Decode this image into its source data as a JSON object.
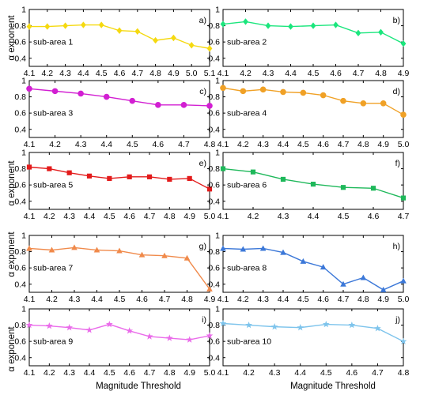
{
  "figure": {
    "ylabel": "α exponent",
    "xlabel": "Magnitude Threshold"
  },
  "chart_data": [
    {
      "type": "line",
      "panel": "a)",
      "label": "sub-area 1",
      "color": "#f5d90f",
      "marker": "diamond",
      "x": [
        4.1,
        4.2,
        4.3,
        4.4,
        4.5,
        4.6,
        4.7,
        4.8,
        4.9,
        5.0,
        5.1
      ],
      "y": [
        0.79,
        0.79,
        0.8,
        0.81,
        0.81,
        0.74,
        0.73,
        0.62,
        0.65,
        0.56,
        0.52
      ],
      "xticks": [
        "4.1",
        "4.2",
        "4.3",
        "4.4",
        "4.5",
        "4.6",
        "4.7",
        "4.8",
        "4.9",
        "5.0",
        "5.1"
      ],
      "xlim": [
        4.1,
        5.1
      ],
      "ylim": [
        0.3,
        1.0
      ],
      "yticks": [
        "0.4",
        "0.6",
        "0.8",
        "1"
      ]
    },
    {
      "type": "line",
      "panel": "b)",
      "label": "sub-area 2",
      "color": "#1be67d",
      "marker": "diamond",
      "x": [
        4.1,
        4.2,
        4.3,
        4.4,
        4.5,
        4.6,
        4.7,
        4.8,
        4.9
      ],
      "y": [
        0.82,
        0.85,
        0.8,
        0.79,
        0.8,
        0.81,
        0.71,
        0.72,
        0.58
      ],
      "xticks": [
        "4.1",
        "4.2",
        "4.3",
        "4.4",
        "4.5",
        "4.6",
        "4.7",
        "4.8",
        "4.9"
      ],
      "xlim": [
        4.1,
        4.9
      ],
      "ylim": [
        0.3,
        1.0
      ],
      "yticks": [
        "0.4",
        "0.6",
        "0.8",
        "1"
      ]
    },
    {
      "type": "line",
      "panel": "c)",
      "label": "sub-area 3",
      "color": "#d21fd2",
      "marker": "circle",
      "x": [
        4.1,
        4.2,
        4.3,
        4.4,
        4.5,
        4.6,
        4.7,
        4.8
      ],
      "y": [
        0.9,
        0.87,
        0.84,
        0.8,
        0.75,
        0.7,
        0.7,
        0.69
      ],
      "xticks": [
        "4.1",
        "4.2",
        "4.3",
        "4.4",
        "4.5",
        "4.6",
        "4.7",
        "4.8"
      ],
      "xlim": [
        4.1,
        4.8
      ],
      "ylim": [
        0.3,
        1.0
      ],
      "yticks": [
        "0.4",
        "0.6",
        "0.8",
        "1"
      ]
    },
    {
      "type": "line",
      "panel": "d)",
      "label": "sub-area 4",
      "color": "#f0a126",
      "marker": "circle",
      "x": [
        4.1,
        4.2,
        4.3,
        4.4,
        4.5,
        4.6,
        4.7,
        4.8,
        4.9,
        5.0
      ],
      "y": [
        0.91,
        0.87,
        0.89,
        0.86,
        0.85,
        0.82,
        0.75,
        0.72,
        0.72,
        0.58
      ],
      "xticks": [
        "4.1",
        "4.2",
        "4.3",
        "4.4",
        "4.5",
        "4.6",
        "4.7",
        "4.8",
        "4.9",
        "5.0"
      ],
      "xlim": [
        4.1,
        5.0
      ],
      "ylim": [
        0.3,
        1.0
      ],
      "yticks": [
        "0.4",
        "0.6",
        "0.8",
        "1"
      ]
    },
    {
      "type": "line",
      "panel": "e)",
      "label": "sub-area 5",
      "color": "#e31b1b",
      "marker": "square",
      "x": [
        4.1,
        4.2,
        4.3,
        4.4,
        4.5,
        4.6,
        4.7,
        4.8,
        4.9,
        5.0
      ],
      "y": [
        0.82,
        0.8,
        0.75,
        0.71,
        0.68,
        0.7,
        0.7,
        0.67,
        0.68,
        0.55
      ],
      "xticks": [
        "4.1",
        "4.2",
        "4.3",
        "4.4",
        "4.5",
        "4.6",
        "4.7",
        "4.8",
        "4.9",
        "5.0"
      ],
      "xlim": [
        4.1,
        5.0
      ],
      "ylim": [
        0.3,
        1.0
      ],
      "yticks": [
        "0.4",
        "0.6",
        "0.8",
        "1"
      ]
    },
    {
      "type": "line",
      "panel": "f)",
      "label": "sub-area 6",
      "color": "#1eb85a",
      "marker": "square",
      "x": [
        4.1,
        4.2,
        4.3,
        4.4,
        4.5,
        4.6,
        4.7
      ],
      "y": [
        0.8,
        0.76,
        0.67,
        0.61,
        0.57,
        0.56,
        0.44
      ],
      "xticks": [
        "4.1",
        "4.2",
        "4.3",
        "4.4",
        "4.5",
        "4.6",
        "4.7"
      ],
      "xlim": [
        4.1,
        4.7
      ],
      "ylim": [
        0.3,
        1.0
      ],
      "yticks": [
        "0.4",
        "0.6",
        "0.8",
        "1"
      ]
    },
    {
      "type": "line",
      "panel": "g)",
      "label": "sub-area 7",
      "color": "#f08a4b",
      "marker": "triangle",
      "x": [
        4.1,
        4.2,
        4.3,
        4.4,
        4.5,
        4.6,
        4.7,
        4.8,
        4.9
      ],
      "y": [
        0.84,
        0.82,
        0.85,
        0.82,
        0.81,
        0.76,
        0.75,
        0.72,
        0.34
      ],
      "xticks": [
        "4.1",
        "4.2",
        "4.3",
        "4.4",
        "4.5",
        "4.6",
        "4.7",
        "4.8",
        "4.9"
      ],
      "xlim": [
        4.1,
        4.9
      ],
      "ylim": [
        0.3,
        1.0
      ],
      "yticks": [
        "0.4",
        "0.6",
        "0.8",
        "1"
      ]
    },
    {
      "type": "line",
      "panel": "h)",
      "label": "sub-area 8",
      "color": "#3c78d8",
      "marker": "triangle",
      "x": [
        4.1,
        4.2,
        4.3,
        4.4,
        4.5,
        4.6,
        4.7,
        4.8,
        4.9,
        5.0
      ],
      "y": [
        0.84,
        0.83,
        0.84,
        0.79,
        0.68,
        0.61,
        0.4,
        0.48,
        0.33,
        0.44
      ],
      "xticks": [
        "4.1",
        "4.2",
        "4.3",
        "4.4",
        "4.5",
        "4.6",
        "4.7",
        "4.8",
        "4.9",
        "5.0"
      ],
      "xlim": [
        4.1,
        5.0
      ],
      "ylim": [
        0.3,
        1.0
      ],
      "yticks": [
        "0.4",
        "0.6",
        "0.8",
        "1"
      ]
    },
    {
      "type": "line",
      "panel": "i)",
      "label": "sub-area 9",
      "color": "#ea6cea",
      "marker": "star",
      "x": [
        4.1,
        4.2,
        4.3,
        4.4,
        4.5,
        4.6,
        4.7,
        4.8,
        4.9,
        5.0
      ],
      "y": [
        0.8,
        0.79,
        0.77,
        0.74,
        0.81,
        0.73,
        0.66,
        0.64,
        0.62,
        0.67
      ],
      "xticks": [
        "4.1",
        "4.2",
        "4.3",
        "4.4",
        "4.5",
        "4.6",
        "4.7",
        "4.8",
        "4.9",
        "5.0"
      ],
      "xlim": [
        4.1,
        5.0
      ],
      "ylim": [
        0.3,
        1.0
      ],
      "yticks": [
        "0.4",
        "0.6",
        "0.8",
        "1"
      ]
    },
    {
      "type": "line",
      "panel": "j)",
      "label": "sub-area 10",
      "color": "#7ec4ec",
      "marker": "star",
      "x": [
        4.1,
        4.2,
        4.3,
        4.4,
        4.5,
        4.6,
        4.7,
        4.8
      ],
      "y": [
        0.82,
        0.8,
        0.78,
        0.77,
        0.81,
        0.8,
        0.76,
        0.6
      ],
      "xticks": [
        "4.1",
        "4.2",
        "4.3",
        "4.4",
        "4.5",
        "4.6",
        "4.7",
        "4.8"
      ],
      "xlim": [
        4.1,
        4.8
      ],
      "ylim": [
        0.3,
        1.0
      ],
      "yticks": [
        "0.4",
        "0.6",
        "0.8",
        "1"
      ]
    }
  ]
}
